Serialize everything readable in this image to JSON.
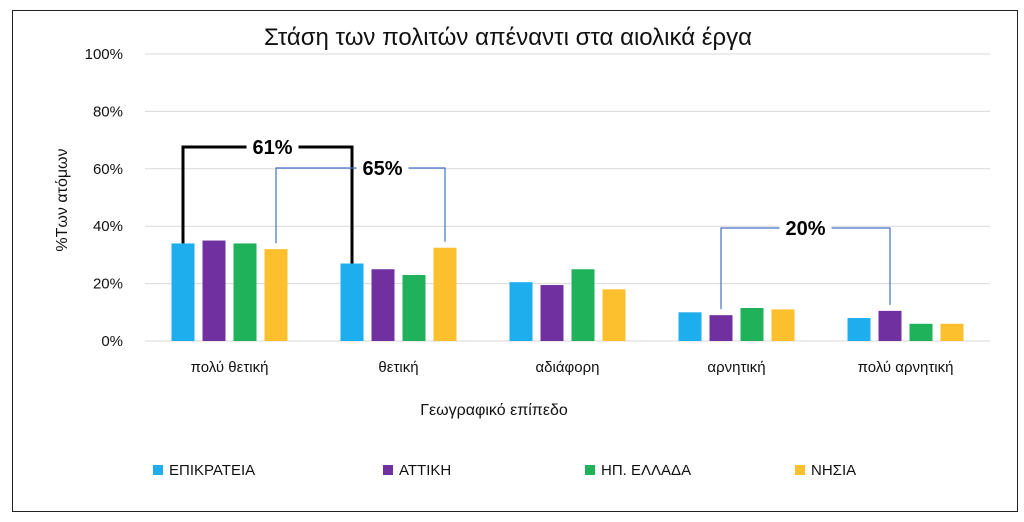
{
  "chart_data": {
    "type": "bar",
    "title": "Στάση των πολιτών απέναντι στα αιολικά έργα",
    "xlabel": "Γεωγραφικό επίπεδο",
    "ylabel": "%Των ατόμων",
    "ylim": [
      0,
      100
    ],
    "yticks": [
      "0%",
      "20%",
      "40%",
      "60%",
      "80%",
      "100%"
    ],
    "grid": true,
    "legend_position": "bottom",
    "categories": [
      "πολύ θετική",
      "θετική",
      "αδιάφορη",
      "αρνητική",
      "πολύ αρνητική"
    ],
    "series": [
      {
        "name": "ΕΠΙΚΡΑΤΕΙΑ",
        "color": "#1eaeee",
        "values": [
          34,
          27,
          20.5,
          10,
          8
        ]
      },
      {
        "name": "ΑΤΤΙΚΗ",
        "color": "#7030a0",
        "values": [
          35,
          25,
          19.5,
          9,
          10.5
        ]
      },
      {
        "name": "ΗΠ. ΕΛΛΑΔΑ",
        "color": "#1fb25a",
        "values": [
          34,
          23,
          25,
          11.5,
          6
        ]
      },
      {
        "name": "ΝΗΣΙΑ",
        "color": "#fcbf2e",
        "values": [
          32,
          32.5,
          18,
          11,
          6
        ]
      }
    ],
    "annotations": [
      {
        "label": "61%",
        "color": "#000000",
        "from": {
          "category": 0,
          "series": 0
        },
        "to": {
          "category": 1,
          "series": 0
        }
      },
      {
        "label": "65%",
        "color": "#4472c4",
        "from": {
          "category": 0,
          "series": 3
        },
        "to": {
          "category": 1,
          "series": 3
        }
      },
      {
        "label": "20%",
        "color": "#4472c4",
        "from": {
          "category": 3,
          "series": 1
        },
        "to": {
          "category": 4,
          "series": 1
        }
      }
    ]
  }
}
